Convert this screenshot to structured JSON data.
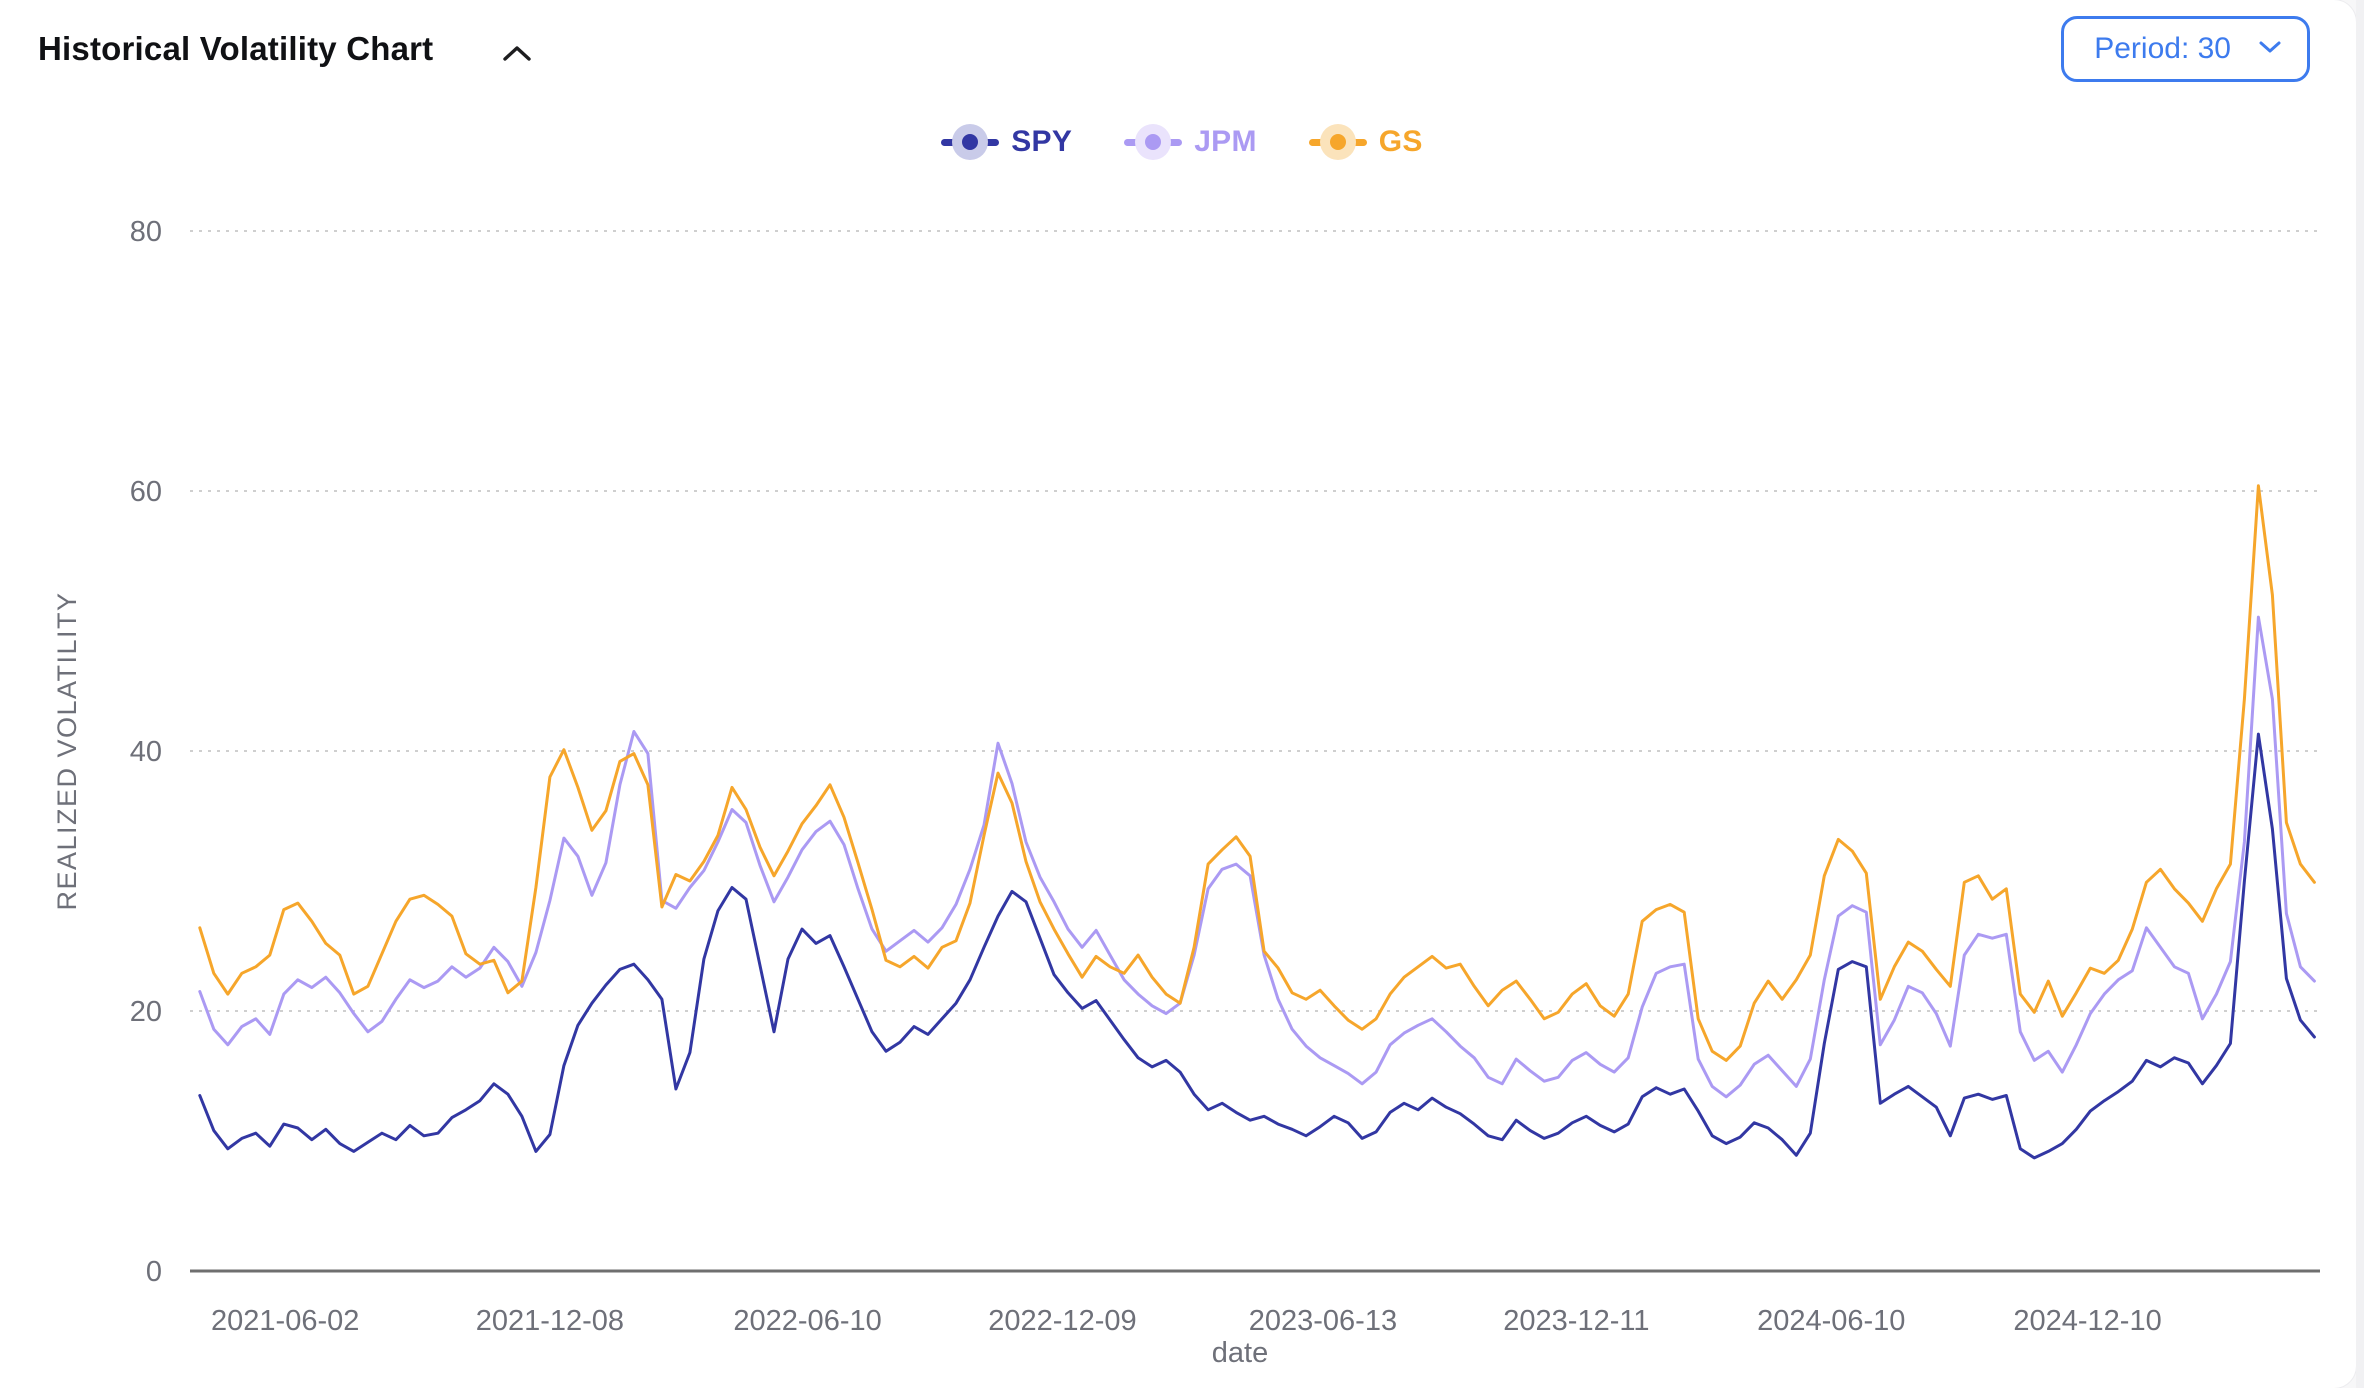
{
  "header": {
    "title": "Historical Volatility Chart",
    "collapse_icon": "chevron-up"
  },
  "period_selector": {
    "value": "Period: 30",
    "icon": "chevron-down",
    "accent_color": "#3d7bee"
  },
  "legend": [
    {
      "label": "SPY",
      "color": "#3237a3",
      "halo": "#c9cbe9"
    },
    {
      "label": "JPM",
      "color": "#ab9af3",
      "halo": "#eae3fc"
    },
    {
      "label": "GS",
      "color": "#f6a62b",
      "halo": "#fbe3bb"
    }
  ],
  "chart_data": {
    "type": "line",
    "title": "Historical Volatility Chart",
    "xlabel": "date",
    "ylabel": "REALIZED VOLATILITY",
    "ylim": [
      0,
      80
    ],
    "yticks": [
      0,
      20,
      40,
      60,
      80
    ],
    "grid": "horizontal-dotted",
    "legend_position": "top-center",
    "axis_text_color": "#6e7079",
    "gridline_color": "#cfcfcf",
    "axis_line_color": "#6f6f6f",
    "x_domain": [
      "2021-03-26",
      "2025-05-25"
    ],
    "xtick_labels": [
      "2021-06-02",
      "2021-12-08",
      "2022-06-10",
      "2022-12-09",
      "2023-06-13",
      "2023-12-11",
      "2024-06-10",
      "2024-12-10"
    ],
    "series": [
      {
        "name": "SPY",
        "color": "#3237a3",
        "start": "2021-04-02",
        "step_days": 10,
        "values": [
          13.5,
          10.8,
          9.4,
          10.2,
          10.6,
          9.6,
          11.3,
          11.0,
          10.1,
          10.9,
          9.8,
          9.2,
          9.9,
          10.6,
          10.1,
          11.2,
          10.4,
          10.6,
          11.8,
          12.4,
          13.1,
          14.4,
          13.6,
          11.9,
          9.2,
          10.5,
          15.8,
          18.9,
          20.6,
          22.0,
          23.2,
          23.6,
          22.4,
          20.9,
          14.0,
          16.8,
          24.0,
          27.7,
          29.5,
          28.6,
          23.5,
          18.4,
          24.0,
          26.3,
          25.2,
          25.8,
          23.4,
          20.9,
          18.4,
          16.9,
          17.6,
          18.8,
          18.2,
          19.4,
          20.6,
          22.4,
          24.9,
          27.3,
          29.2,
          28.4,
          25.6,
          22.8,
          21.4,
          20.2,
          20.8,
          19.3,
          17.8,
          16.4,
          15.7,
          16.2,
          15.3,
          13.6,
          12.4,
          12.9,
          12.2,
          11.6,
          11.9,
          11.3,
          10.9,
          10.4,
          11.1,
          11.9,
          11.4,
          10.2,
          10.7,
          12.2,
          12.9,
          12.4,
          13.3,
          12.6,
          12.1,
          11.3,
          10.4,
          10.1,
          11.6,
          10.8,
          10.2,
          10.6,
          11.4,
          11.9,
          11.2,
          10.7,
          11.3,
          13.4,
          14.1,
          13.6,
          14.0,
          12.3,
          10.4,
          9.8,
          10.3,
          11.4,
          11.0,
          10.1,
          8.9,
          10.6,
          17.5,
          23.2,
          23.8,
          23.4,
          12.9,
          13.6,
          14.2,
          13.4,
          12.6,
          10.4,
          13.3,
          13.6,
          13.2,
          13.5,
          9.4,
          8.7,
          9.2,
          9.8,
          10.9,
          12.3,
          13.1,
          13.8,
          14.6,
          16.2,
          15.7,
          16.4,
          16.0,
          14.4,
          15.8,
          17.5,
          30.0,
          41.3,
          34.0,
          22.5,
          19.3,
          18.0
        ]
      },
      {
        "name": "JPM",
        "color": "#ab9af3",
        "start": "2021-04-02",
        "step_days": 10,
        "values": [
          21.5,
          18.6,
          17.4,
          18.8,
          19.4,
          18.2,
          21.3,
          22.4,
          21.8,
          22.6,
          21.4,
          19.8,
          18.4,
          19.2,
          20.9,
          22.4,
          21.8,
          22.3,
          23.4,
          22.6,
          23.3,
          24.9,
          23.8,
          21.9,
          24.5,
          28.5,
          33.3,
          31.9,
          28.9,
          31.4,
          37.4,
          41.5,
          39.8,
          28.5,
          27.9,
          29.5,
          30.8,
          33.0,
          35.5,
          34.5,
          31.2,
          28.4,
          30.3,
          32.4,
          33.8,
          34.6,
          32.8,
          29.4,
          26.3,
          24.6,
          25.4,
          26.2,
          25.3,
          26.4,
          28.2,
          30.9,
          34.3,
          40.6,
          37.5,
          33.0,
          30.3,
          28.4,
          26.3,
          24.9,
          26.2,
          24.3,
          22.4,
          21.3,
          20.4,
          19.8,
          20.6,
          24.3,
          29.4,
          30.9,
          31.3,
          30.4,
          24.3,
          20.9,
          18.6,
          17.3,
          16.4,
          15.8,
          15.2,
          14.4,
          15.3,
          17.4,
          18.3,
          18.9,
          19.4,
          18.4,
          17.3,
          16.4,
          14.9,
          14.4,
          16.3,
          15.4,
          14.6,
          14.9,
          16.2,
          16.8,
          15.9,
          15.3,
          16.4,
          20.3,
          22.9,
          23.4,
          23.6,
          16.3,
          14.2,
          13.4,
          14.3,
          15.9,
          16.6,
          15.4,
          14.2,
          16.3,
          22.4,
          27.3,
          28.1,
          27.6,
          17.4,
          19.3,
          21.9,
          21.4,
          19.8,
          17.3,
          24.3,
          25.9,
          25.6,
          25.9,
          18.4,
          16.2,
          16.9,
          15.3,
          17.4,
          19.8,
          21.3,
          22.4,
          23.1,
          26.4,
          24.9,
          23.4,
          22.9,
          19.4,
          21.3,
          23.8,
          33.0,
          50.3,
          44.0,
          27.5,
          23.4,
          22.3
        ]
      },
      {
        "name": "GS",
        "color": "#f6a62b",
        "start": "2021-04-02",
        "step_days": 10,
        "values": [
          26.4,
          22.9,
          21.3,
          22.9,
          23.4,
          24.3,
          27.8,
          28.3,
          26.9,
          25.2,
          24.3,
          21.3,
          21.9,
          24.4,
          26.9,
          28.6,
          28.9,
          28.2,
          27.3,
          24.4,
          23.6,
          23.9,
          21.4,
          22.3,
          29.5,
          38.0,
          40.1,
          37.2,
          33.9,
          35.4,
          39.2,
          39.8,
          37.4,
          28.0,
          30.5,
          30.0,
          31.5,
          33.5,
          37.2,
          35.5,
          32.6,
          30.4,
          32.3,
          34.4,
          35.8,
          37.4,
          34.9,
          31.4,
          27.8,
          23.9,
          23.4,
          24.2,
          23.3,
          24.9,
          25.4,
          28.3,
          33.5,
          38.3,
          36.0,
          31.5,
          28.4,
          26.3,
          24.4,
          22.6,
          24.2,
          23.4,
          22.9,
          24.3,
          22.6,
          21.3,
          20.6,
          24.9,
          31.3,
          32.4,
          33.4,
          31.9,
          24.6,
          23.3,
          21.4,
          20.9,
          21.6,
          20.4,
          19.3,
          18.6,
          19.4,
          21.3,
          22.6,
          23.4,
          24.2,
          23.3,
          23.6,
          21.9,
          20.4,
          21.6,
          22.3,
          20.9,
          19.4,
          19.9,
          21.3,
          22.1,
          20.4,
          19.6,
          21.3,
          26.9,
          27.8,
          28.2,
          27.6,
          19.4,
          16.9,
          16.2,
          17.3,
          20.6,
          22.3,
          20.9,
          22.4,
          24.3,
          30.4,
          33.2,
          32.3,
          30.6,
          20.9,
          23.4,
          25.3,
          24.6,
          23.2,
          21.9,
          29.9,
          30.4,
          28.6,
          29.4,
          21.3,
          19.9,
          22.3,
          19.6,
          21.4,
          23.3,
          22.9,
          23.9,
          26.3,
          29.9,
          30.9,
          29.4,
          28.3,
          26.9,
          29.4,
          31.3,
          44.0,
          60.4,
          52.0,
          34.5,
          31.3,
          29.9
        ]
      }
    ]
  }
}
